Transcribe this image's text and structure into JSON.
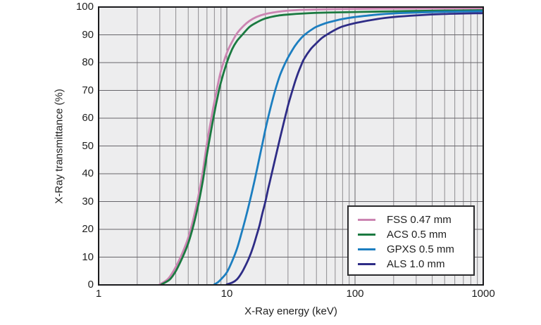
{
  "page": {
    "background": "#ffffff"
  },
  "chart": {
    "colors": {
      "plot_background": "#ededee",
      "grid_major": "#67656a",
      "grid_minor": "#8f8d91",
      "border": "#1b1b1d",
      "text": "#1f1f1f",
      "legend_border": "#2b2b2d",
      "legend_background": "#ffffff"
    }
  },
  "chart_data": {
    "type": "line",
    "title": "",
    "xlabel": "X-Ray energy (keV)",
    "ylabel": "X-Ray transmittance (%)",
    "x_scale": "log",
    "xlim": [
      1,
      1000
    ],
    "ylim": [
      0,
      100
    ],
    "x_ticks": [
      1,
      10,
      100,
      1000
    ],
    "y_ticks": [
      0,
      10,
      20,
      30,
      40,
      50,
      60,
      70,
      80,
      90,
      100
    ],
    "grid": true,
    "legend_position": "lower right",
    "series": [
      {
        "name": "FSS 0.47 mm",
        "color": "#cc85b2",
        "points": [
          [
            3,
            0.2
          ],
          [
            3.5,
            2.3
          ],
          [
            4,
            6.5
          ],
          [
            4.5,
            11.5
          ],
          [
            5,
            17
          ],
          [
            5.5,
            24
          ],
          [
            6,
            32
          ],
          [
            6.5,
            41
          ],
          [
            7,
            51
          ],
          [
            7.5,
            59
          ],
          [
            8,
            66
          ],
          [
            8.5,
            72
          ],
          [
            9,
            77
          ],
          [
            10,
            83.5
          ],
          [
            11,
            87.5
          ],
          [
            12,
            90.5
          ],
          [
            13.5,
            93.2
          ],
          [
            15,
            95
          ],
          [
            17,
            96.4
          ],
          [
            20,
            97.5
          ],
          [
            25,
            98.3
          ],
          [
            30,
            98.7
          ],
          [
            40,
            99.0
          ],
          [
            60,
            99.2
          ],
          [
            100,
            99.35
          ],
          [
            200,
            99.45
          ],
          [
            400,
            99.5
          ],
          [
            1000,
            99.55
          ]
        ]
      },
      {
        "name": "ACS 0.5 mm",
        "color": "#1b7a41",
        "points": [
          [
            3.1,
            0.2
          ],
          [
            3.6,
            2
          ],
          [
            4,
            5
          ],
          [
            4.5,
            9.8
          ],
          [
            5,
            15
          ],
          [
            5.5,
            21.5
          ],
          [
            6,
            29
          ],
          [
            6.5,
            37.5
          ],
          [
            7,
            47
          ],
          [
            7.5,
            55
          ],
          [
            8,
            62
          ],
          [
            8.5,
            68
          ],
          [
            9,
            73
          ],
          [
            10,
            80
          ],
          [
            11,
            84.8
          ],
          [
            12,
            87.8
          ],
          [
            13.2,
            90
          ],
          [
            15,
            92.8
          ],
          [
            17,
            94.4
          ],
          [
            20,
            95.9
          ],
          [
            25,
            96.9
          ],
          [
            30,
            97.3
          ],
          [
            40,
            97.7
          ],
          [
            60,
            98
          ],
          [
            100,
            98.2
          ],
          [
            200,
            98.45
          ],
          [
            400,
            98.65
          ],
          [
            1000,
            98.85
          ]
        ]
      },
      {
        "name": "GPXS 0.5 mm",
        "color": "#1c7ec0",
        "points": [
          [
            8,
            0.2
          ],
          [
            8.5,
            0.9
          ],
          [
            9,
            2
          ],
          [
            10,
            4.5
          ],
          [
            11,
            8.5
          ],
          [
            12,
            13
          ],
          [
            13,
            18.5
          ],
          [
            14,
            24
          ],
          [
            15,
            29.5
          ],
          [
            16,
            35
          ],
          [
            17,
            40.5
          ],
          [
            18,
            46
          ],
          [
            19,
            51
          ],
          [
            20,
            56
          ],
          [
            22,
            64
          ],
          [
            24,
            70.5
          ],
          [
            26,
            75.5
          ],
          [
            28,
            79
          ],
          [
            30,
            81.8
          ],
          [
            34,
            86
          ],
          [
            38,
            88.8
          ],
          [
            42,
            90.6
          ],
          [
            46,
            91.9
          ],
          [
            50,
            92.9
          ],
          [
            60,
            94.3
          ],
          [
            70,
            95.1
          ],
          [
            80,
            95.7
          ],
          [
            100,
            96.4
          ],
          [
            150,
            97.3
          ],
          [
            200,
            97.7
          ],
          [
            300,
            98
          ],
          [
            500,
            98.3
          ],
          [
            1000,
            98.5
          ]
        ]
      },
      {
        "name": "ALS 1.0 mm",
        "color": "#2e2c86",
        "points": [
          [
            10,
            0.2
          ],
          [
            11,
            0.8
          ],
          [
            12,
            2
          ],
          [
            13,
            4.2
          ],
          [
            14,
            7
          ],
          [
            15,
            10
          ],
          [
            16,
            13.5
          ],
          [
            17,
            17.5
          ],
          [
            18,
            21.5
          ],
          [
            19,
            26
          ],
          [
            20,
            30
          ],
          [
            21,
            34.5
          ],
          [
            22,
            38.5
          ],
          [
            24,
            46
          ],
          [
            26,
            52.8
          ],
          [
            28,
            59
          ],
          [
            30,
            64.5
          ],
          [
            32,
            69
          ],
          [
            34,
            73
          ],
          [
            36,
            76.3
          ],
          [
            38,
            79
          ],
          [
            40,
            81.3
          ],
          [
            45,
            84.8
          ],
          [
            50,
            87
          ],
          [
            55,
            88.8
          ],
          [
            60,
            90
          ],
          [
            70,
            91.8
          ],
          [
            80,
            93
          ],
          [
            100,
            94.2
          ],
          [
            150,
            95.7
          ],
          [
            200,
            96.4
          ],
          [
            300,
            97
          ],
          [
            500,
            97.5
          ],
          [
            1000,
            97.8
          ]
        ]
      }
    ]
  }
}
